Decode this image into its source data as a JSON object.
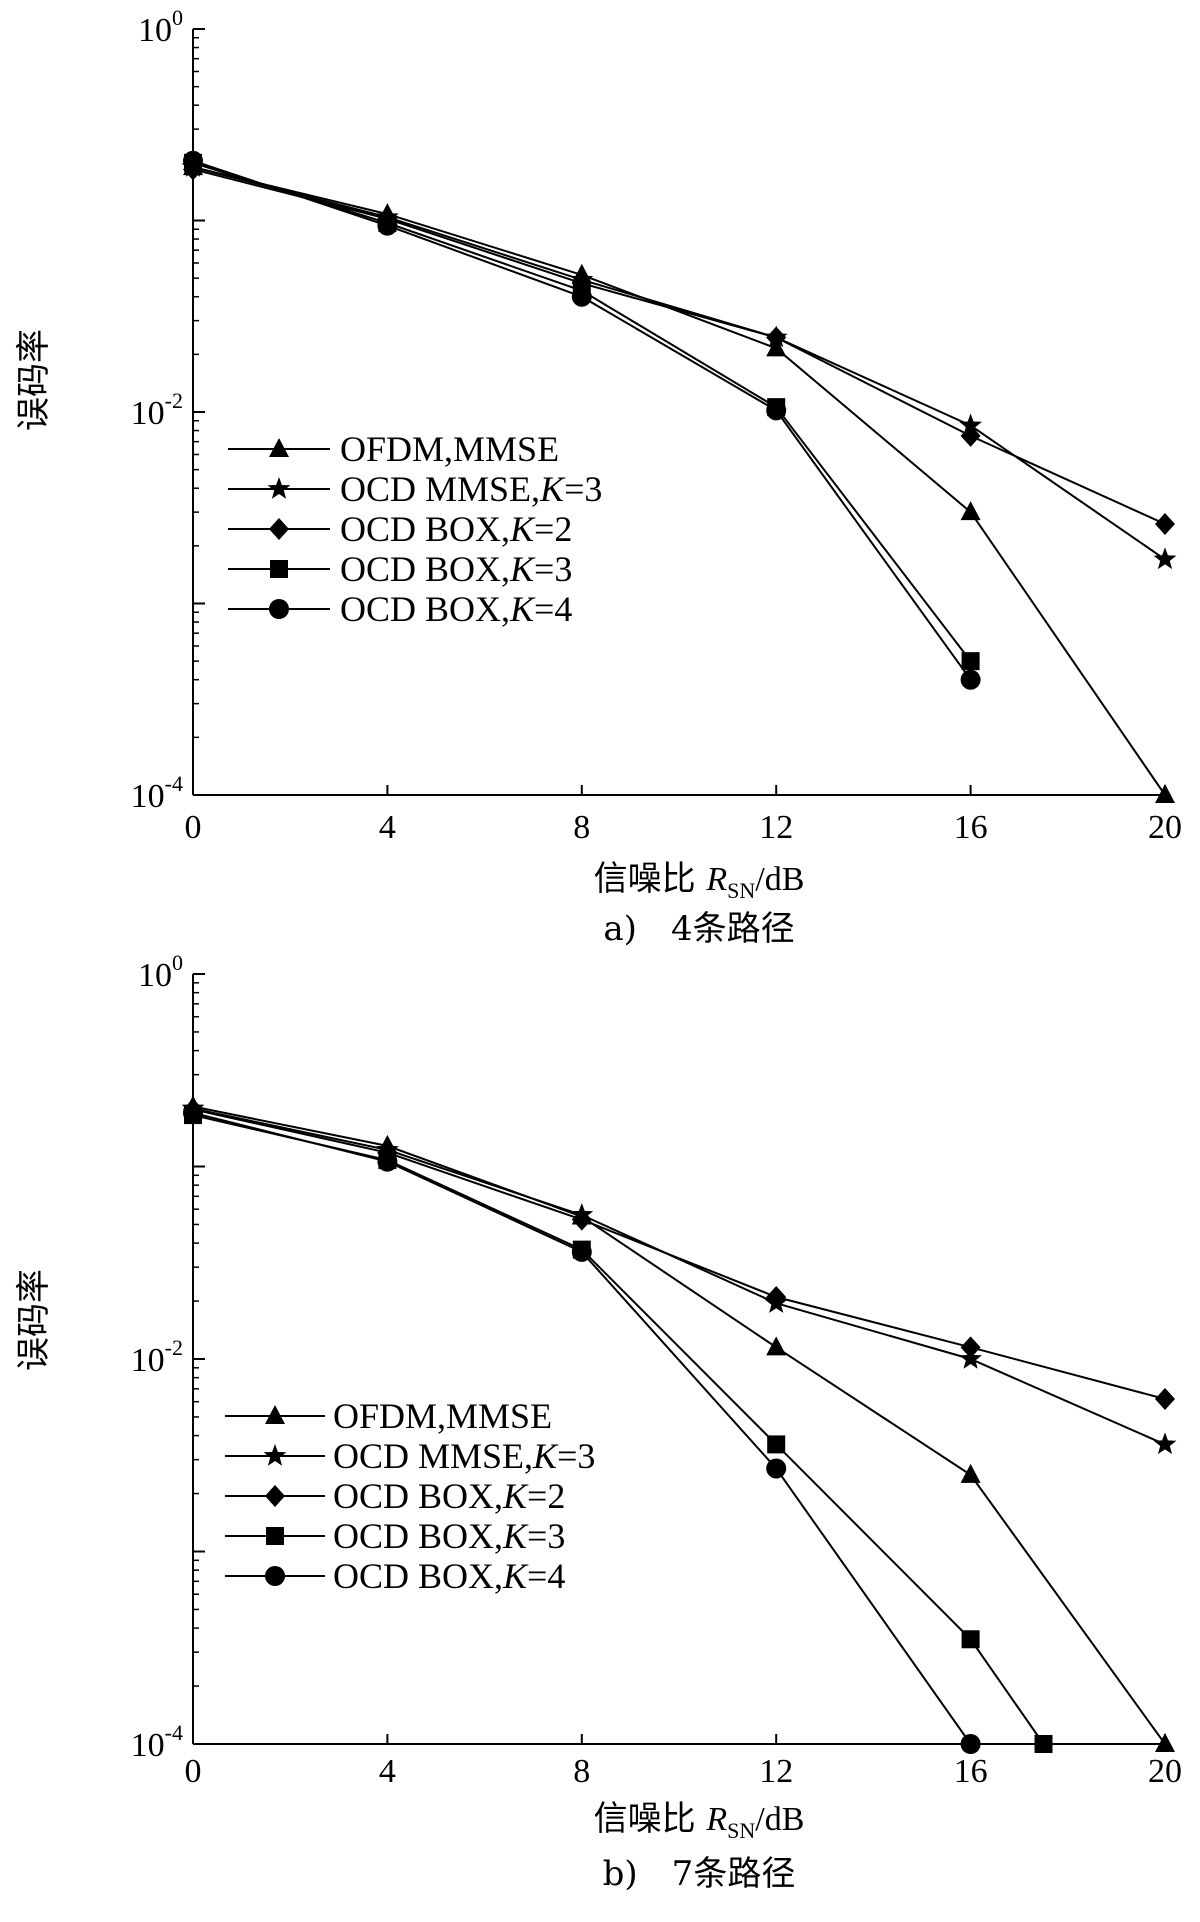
{
  "chart_data": [
    {
      "type": "line",
      "caption": "a)　4条路径",
      "xlabel": "信噪比",
      "xlabel_symbol": "R",
      "xlabel_subscript": "SN",
      "xlabel_unit": "/dB",
      "ylabel": "误码率",
      "x_ticks": [
        "0",
        "4",
        "8",
        "12",
        "16",
        "20"
      ],
      "y_ticks": [
        {
          "base": "10",
          "exp": "0"
        },
        {
          "base": "10",
          "exp": "-2"
        },
        {
          "base": "10",
          "exp": "-4"
        }
      ],
      "xlim": [
        0,
        20
      ],
      "ylim": [
        0.0001,
        1
      ],
      "yscale": "log",
      "legend_position": "left-center",
      "series": [
        {
          "name": "OFDM,MMSE",
          "name_prefix": "OFDM,MMSE",
          "name_italic": "",
          "name_suffix": "",
          "marker": "triangle",
          "x": [
            0,
            4,
            8,
            12,
            16,
            20
          ],
          "y": [
            0.19,
            0.108,
            0.052,
            0.0215,
            0.003,
            0.0001
          ]
        },
        {
          "name": "OCD MMSE,K=3",
          "name_prefix": "OCD MMSE,",
          "name_italic": "K",
          "name_suffix": "=3",
          "marker": "star",
          "x": [
            0,
            4,
            8,
            12,
            16,
            20
          ],
          "y": [
            0.19,
            0.104,
            0.049,
            0.0245,
            0.0085,
            0.0017
          ]
        },
        {
          "name": "OCD BOX,K=2",
          "name_prefix": "OCD BOX,",
          "name_italic": "K",
          "name_suffix": "=2",
          "marker": "diamond",
          "x": [
            0,
            4,
            8,
            12,
            16,
            20
          ],
          "y": [
            0.185,
            0.102,
            0.047,
            0.0245,
            0.0075,
            0.0026
          ]
        },
        {
          "name": "OCD BOX,K=3",
          "name_prefix": "OCD BOX,",
          "name_italic": "K",
          "name_suffix": "=3",
          "marker": "square",
          "x": [
            0,
            4,
            8,
            12,
            16
          ],
          "y": [
            0.2,
            0.097,
            0.043,
            0.0106,
            0.0005
          ]
        },
        {
          "name": "OCD BOX,K=4",
          "name_prefix": "OCD BOX,",
          "name_italic": "K",
          "name_suffix": "=4",
          "marker": "circle",
          "x": [
            0,
            4,
            8,
            12,
            16
          ],
          "y": [
            0.205,
            0.094,
            0.04,
            0.0102,
            0.0004
          ]
        }
      ]
    },
    {
      "type": "line",
      "caption": "b)　7条路径",
      "xlabel": "信噪比",
      "xlabel_symbol": "R",
      "xlabel_subscript": "SN",
      "xlabel_unit": "/dB",
      "ylabel": "误码率",
      "x_ticks": [
        "0",
        "4",
        "8",
        "12",
        "16",
        "20"
      ],
      "y_ticks": [
        {
          "base": "10",
          "exp": "0"
        },
        {
          "base": "10",
          "exp": "-2"
        },
        {
          "base": "10",
          "exp": "-4"
        }
      ],
      "xlim": [
        0,
        20
      ],
      "ylim": [
        0.0001,
        1
      ],
      "yscale": "log",
      "legend_position": "bottom-left",
      "series": [
        {
          "name": "OFDM,MMSE",
          "name_prefix": "OFDM,MMSE",
          "name_italic": "",
          "name_suffix": "",
          "marker": "triangle",
          "x": [
            0,
            4,
            8,
            12,
            16,
            20
          ],
          "y": [
            0.205,
            0.128,
            0.055,
            0.0115,
            0.0025,
            0.0001
          ]
        },
        {
          "name": "OCD MMSE,K=3",
          "name_prefix": "OCD MMSE,",
          "name_italic": "K",
          "name_suffix": "=3",
          "marker": "star",
          "x": [
            0,
            4,
            8,
            12,
            16,
            20
          ],
          "y": [
            0.2,
            0.122,
            0.056,
            0.0195,
            0.01,
            0.0036
          ]
        },
        {
          "name": "OCD BOX,K=2",
          "name_prefix": "OCD BOX,",
          "name_italic": "K",
          "name_suffix": "=2",
          "marker": "diamond",
          "x": [
            0,
            4,
            8,
            12,
            16,
            20
          ],
          "y": [
            0.198,
            0.118,
            0.053,
            0.021,
            0.0115,
            0.0062
          ]
        },
        {
          "name": "OCD BOX,K=3",
          "name_prefix": "OCD BOX,",
          "name_italic": "K",
          "name_suffix": "=3",
          "marker": "square",
          "x": [
            0,
            4,
            8,
            12,
            16,
            17.5
          ],
          "y": [
            0.185,
            0.108,
            0.037,
            0.0036,
            0.00035,
            0.0001
          ]
        },
        {
          "name": "OCD BOX,K=4",
          "name_prefix": "OCD BOX,",
          "name_italic": "K",
          "name_suffix": "=4",
          "marker": "circle",
          "x": [
            0,
            4,
            8,
            12,
            16
          ],
          "y": [
            0.19,
            0.106,
            0.036,
            0.0027,
            0.0001
          ]
        }
      ]
    }
  ]
}
